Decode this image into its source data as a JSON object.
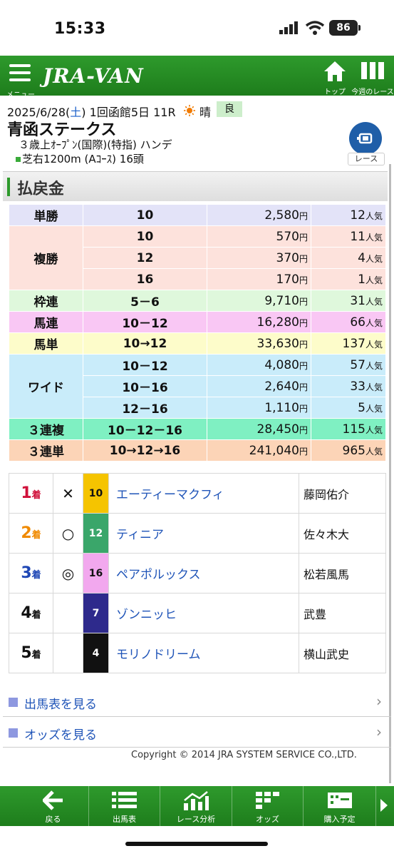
{
  "status_bar": {
    "time": "15:33",
    "battery": "86"
  },
  "header": {
    "menu_label": "メニュー",
    "logo": "JRA-VAN",
    "top_label": "トップ",
    "week_label": "今週のレース"
  },
  "race": {
    "date_prefix": "2025/6/28(",
    "date_day": "土",
    "date_suffix": ")",
    "meeting": "1回函館5日 11R",
    "weather": "晴",
    "track_condition": "良",
    "name": "青函ステークス",
    "conditions": "３歳上ｵｰﾌﾟﾝ(国際)(特指) ハンデ",
    "course": "芝右1200m (Aｺｰｽ) 16頭",
    "race_button_label": "レース"
  },
  "payout": {
    "title": "払戻金",
    "yen": "円",
    "ninki": "人気",
    "rows": {
      "tansho": {
        "type": "単勝",
        "entries": [
          {
            "comb": "10",
            "pay": "2,580",
            "pop": "12"
          }
        ]
      },
      "fukusho": {
        "type": "複勝",
        "entries": [
          {
            "comb": "10",
            "pay": "570",
            "pop": "11"
          },
          {
            "comb": "12",
            "pay": "370",
            "pop": "4"
          },
          {
            "comb": "16",
            "pay": "170",
            "pop": "1"
          }
        ]
      },
      "wakuren": {
        "type": "枠連",
        "entries": [
          {
            "comb": "5－6",
            "pay": "9,710",
            "pop": "31"
          }
        ]
      },
      "umaren": {
        "type": "馬連",
        "entries": [
          {
            "comb": "10－12",
            "pay": "16,280",
            "pop": "66"
          }
        ]
      },
      "umatan": {
        "type": "馬単",
        "entries": [
          {
            "comb": "10→12",
            "pay": "33,630",
            "pop": "137"
          }
        ]
      },
      "wide": {
        "type": "ワイド",
        "entries": [
          {
            "comb": "10－12",
            "pay": "4,080",
            "pop": "57"
          },
          {
            "comb": "10－16",
            "pay": "2,640",
            "pop": "33"
          },
          {
            "comb": "12－16",
            "pay": "1,110",
            "pop": "5"
          }
        ]
      },
      "sanrenpuku": {
        "type": "３連複",
        "entries": [
          {
            "comb": "10－12－16",
            "pay": "28,450",
            "pop": "115"
          }
        ]
      },
      "sanrentan": {
        "type": "３連単",
        "entries": [
          {
            "comb": "10→12→16",
            "pay": "241,040",
            "pop": "965"
          }
        ]
      }
    }
  },
  "results": {
    "rank_suffix": "着",
    "rows": [
      {
        "rank": "1",
        "mark": "✕",
        "num": "10",
        "horse": "エーティーマクフィ",
        "jockey": "藤岡佑介",
        "num_bg": "#f5c400",
        "num_color": "#111111",
        "rank_color": "#d0103a"
      },
      {
        "rank": "2",
        "mark": "○",
        "num": "12",
        "horse": "ティニア",
        "jockey": "佐々木大",
        "num_bg": "#3aa66a",
        "num_color": "#ffffff",
        "rank_color": "#f08a00"
      },
      {
        "rank": "3",
        "mark": "◎",
        "num": "16",
        "horse": "ペアポルックス",
        "jockey": "松若風馬",
        "num_bg": "#f2a8ee",
        "num_color": "#111111",
        "rank_color": "#1f47b5"
      },
      {
        "rank": "4",
        "mark": "",
        "num": "7",
        "horse": "ゾンニッヒ",
        "jockey": "武豊",
        "num_bg": "#2e2a8c",
        "num_color": "#ffffff",
        "rank_color": "#111111"
      },
      {
        "rank": "5",
        "mark": "",
        "num": "4",
        "horse": "モリノドリーム",
        "jockey": "横山武史",
        "num_bg": "#111111",
        "num_color": "#ffffff",
        "rank_color": "#111111"
      }
    ]
  },
  "links": {
    "shutsuba": "出馬表を見る",
    "odds": "オッズを見る"
  },
  "copyright": "Copyright © 2014 JRA SYSTEM SERVICE CO.,LTD.",
  "bottom_nav": {
    "back": "戻る",
    "shutsuba": "出馬表",
    "analysis": "レース分析",
    "odds": "オッズ",
    "purchase": "購入予定"
  },
  "colors": {
    "brand_green": "#2e9a2c",
    "link_blue": "#1f54b8"
  }
}
